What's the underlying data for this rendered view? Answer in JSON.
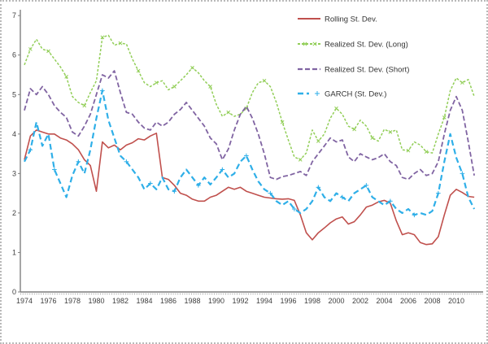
{
  "figure": {
    "background": "#ffffff",
    "border_color": "#b9b9b9",
    "axis_color": "#7f7f7f",
    "tick_label_color": "#404040",
    "legend_text_color": "#333333"
  },
  "chart_data": {
    "type": "line",
    "title": "",
    "xlabel": "",
    "ylabel": "",
    "grid": false,
    "legend_position": "inside-top-center",
    "x_start": 1974,
    "x_step": 0.5,
    "x_end": 2011.5,
    "x_ticks": [
      1974,
      1976,
      1978,
      1980,
      1982,
      1984,
      1986,
      1988,
      1990,
      1992,
      1994,
      1996,
      1998,
      2000,
      2002,
      2004,
      2006,
      2008,
      2010
    ],
    "ylim": [
      0,
      7
    ],
    "y_ticks": [
      0,
      1,
      2,
      3,
      4,
      5,
      6,
      7
    ],
    "series": [
      {
        "name": "Rolling St. Dev.",
        "color": "#c0504d",
        "dash": "",
        "width": 1.6,
        "marker": "none",
        "marker_every": 0,
        "values": [
          3.35,
          3.95,
          4.1,
          4.05,
          4.0,
          4.0,
          3.9,
          3.85,
          3.75,
          3.6,
          3.35,
          3.2,
          2.55,
          3.8,
          3.65,
          3.72,
          3.6,
          3.72,
          3.78,
          3.88,
          3.85,
          3.95,
          4.02,
          2.9,
          2.85,
          2.7,
          2.5,
          2.45,
          2.35,
          2.3,
          2.3,
          2.4,
          2.45,
          2.55,
          2.65,
          2.6,
          2.65,
          2.55,
          2.5,
          2.45,
          2.4,
          2.38,
          2.36,
          2.35,
          2.36,
          2.32,
          1.95,
          1.5,
          1.32,
          1.5,
          1.62,
          1.75,
          1.85,
          1.9,
          1.72,
          1.78,
          1.95,
          2.15,
          2.2,
          2.28,
          2.32,
          2.25,
          1.8,
          1.45,
          1.5,
          1.45,
          1.25,
          1.2,
          1.22,
          1.4,
          1.95,
          2.45,
          2.6,
          2.52,
          2.42,
          2.4
        ]
      },
      {
        "name": "Realized St. Dev. (Long)",
        "color": "#92ce58",
        "dash": "3,2",
        "width": 1.5,
        "marker": "x",
        "marker_every": 3,
        "values": [
          5.75,
          6.15,
          6.4,
          6.15,
          6.1,
          5.9,
          5.7,
          5.45,
          4.95,
          4.8,
          4.72,
          5.05,
          5.35,
          6.45,
          6.5,
          6.25,
          6.3,
          6.28,
          5.9,
          5.6,
          5.3,
          5.2,
          5.3,
          5.35,
          5.12,
          5.2,
          5.35,
          5.5,
          5.68,
          5.55,
          5.35,
          5.2,
          4.75,
          4.45,
          4.55,
          4.45,
          4.5,
          4.65,
          5.05,
          5.3,
          5.35,
          5.2,
          4.8,
          4.3,
          3.85,
          3.42,
          3.35,
          3.52,
          4.1,
          3.82,
          4.0,
          4.4,
          4.65,
          4.5,
          4.2,
          4.12,
          4.35,
          4.2,
          3.9,
          3.82,
          4.12,
          4.05,
          4.1,
          3.6,
          3.58,
          3.8,
          3.72,
          3.55,
          3.52,
          4.0,
          4.42,
          5.1,
          5.42,
          5.3,
          5.38,
          4.95
        ]
      },
      {
        "name": "Realized St. Dev. (Short)",
        "color": "#8064a2",
        "dash": "6,3",
        "width": 1.8,
        "marker": "none",
        "marker_every": 0,
        "values": [
          4.6,
          5.15,
          5.0,
          5.2,
          5.0,
          4.72,
          4.55,
          4.42,
          4.05,
          3.95,
          4.2,
          4.5,
          5.0,
          5.5,
          5.42,
          5.6,
          5.05,
          4.55,
          4.5,
          4.3,
          4.15,
          4.1,
          4.3,
          4.2,
          4.3,
          4.5,
          4.62,
          4.8,
          4.6,
          4.4,
          4.2,
          3.9,
          3.75,
          3.35,
          3.62,
          4.1,
          4.5,
          4.7,
          4.4,
          4.0,
          3.5,
          2.9,
          2.85,
          2.92,
          2.95,
          3.0,
          3.05,
          2.95,
          3.3,
          3.5,
          3.7,
          3.9,
          3.8,
          3.85,
          3.42,
          3.3,
          3.5,
          3.42,
          3.35,
          3.4,
          3.5,
          3.3,
          3.2,
          2.9,
          2.85,
          3.0,
          3.1,
          2.95,
          3.0,
          3.3,
          4.0,
          4.6,
          4.95,
          4.6,
          3.8,
          2.95
        ]
      },
      {
        "name": "GARCH (St. Dev.)",
        "color": "#2fafe8",
        "dash": "7,4",
        "width": 2.2,
        "marker": "plus",
        "marker_every": 4,
        "values": [
          3.3,
          3.6,
          4.3,
          3.7,
          4.0,
          3.1,
          2.75,
          2.4,
          2.95,
          3.3,
          3.0,
          3.6,
          4.4,
          5.1,
          4.35,
          3.9,
          3.45,
          3.3,
          3.1,
          2.9,
          2.6,
          2.75,
          2.6,
          2.9,
          2.6,
          2.55,
          2.9,
          3.1,
          2.9,
          2.7,
          2.9,
          2.72,
          2.9,
          3.1,
          2.9,
          3.0,
          3.3,
          3.45,
          3.1,
          2.8,
          2.6,
          2.5,
          2.3,
          2.2,
          2.3,
          2.1,
          2.0,
          2.1,
          2.3,
          2.65,
          2.4,
          2.3,
          2.5,
          2.4,
          2.3,
          2.5,
          2.6,
          2.7,
          2.4,
          2.3,
          2.2,
          2.3,
          2.1,
          2.0,
          2.1,
          1.95,
          2.0,
          1.95,
          2.05,
          2.5,
          3.3,
          4.0,
          3.4,
          3.0,
          2.4,
          2.1
        ]
      }
    ]
  }
}
